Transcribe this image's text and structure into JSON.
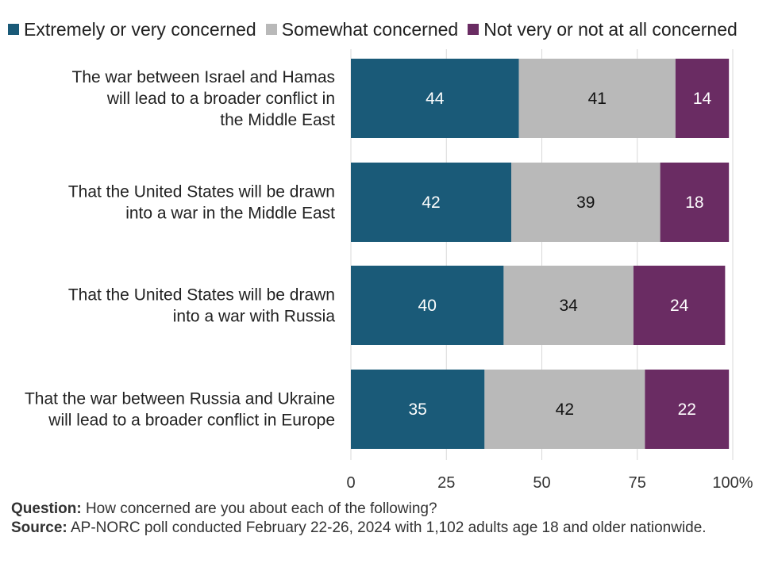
{
  "chart_data": {
    "type": "bar",
    "orientation": "horizontal",
    "stacked": true,
    "categories": [
      [
        "The war between Israel and Hamas",
        "will lead to a broader conflict in",
        "the Middle East"
      ],
      [
        "That the United States will be drawn",
        "into a war in the Middle East"
      ],
      [
        "That the United States will be drawn",
        "into a war with Russia"
      ],
      [
        "That the war between Russia and Ukraine",
        "will lead to a broader conflict in Europe"
      ]
    ],
    "series": [
      {
        "name": "Extremely or very concerned",
        "color": "#1a5a78",
        "label_color": "#ffffff",
        "values": [
          44,
          42,
          40,
          35
        ]
      },
      {
        "name": "Somewhat concerned",
        "color": "#b9b9b9",
        "label_color": "#111111",
        "values": [
          41,
          39,
          34,
          42
        ]
      },
      {
        "name": "Not very or not at all concerned",
        "color": "#6a2c63",
        "label_color": "#ffffff",
        "values": [
          14,
          18,
          24,
          22
        ]
      }
    ],
    "xlim": [
      0,
      100
    ],
    "xticks": [
      0,
      25,
      50,
      75,
      100
    ],
    "xtick_labels": [
      "0",
      "25",
      "50",
      "75",
      "100%"
    ],
    "grid": true,
    "legend_position": "top"
  },
  "footnote": {
    "question_label": "Question:",
    "question_text": " How concerned are you about each of the following?",
    "source_label": "Source:",
    "source_text": " AP-NORC poll conducted February 22-26, 2024 with 1,102 adults age 18 and older nationwide."
  }
}
